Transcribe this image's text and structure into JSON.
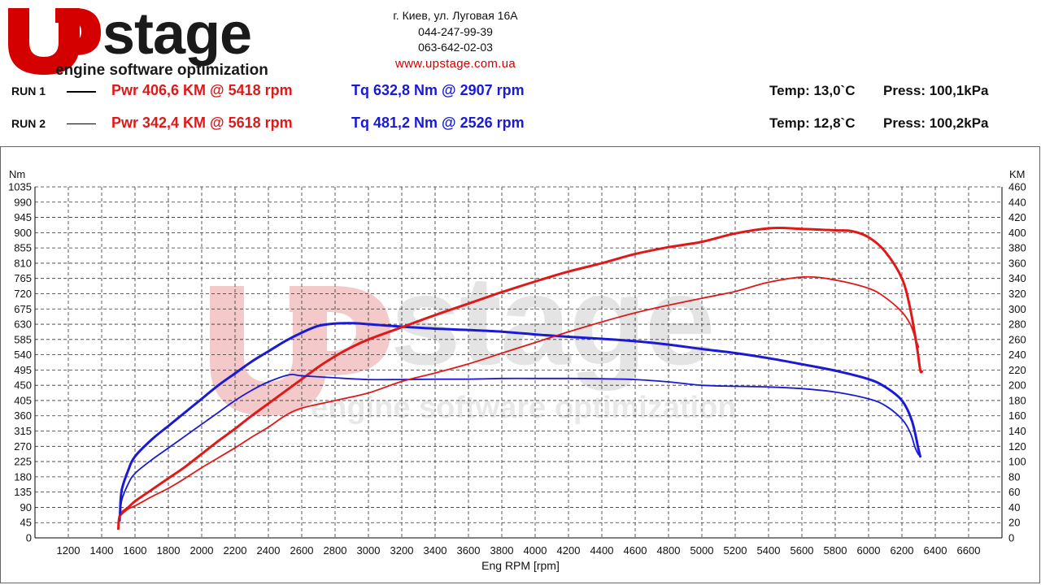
{
  "header": {
    "brand": "stage",
    "tagline": "engine software optimization",
    "address": "г. Киев, ул. Луговая 16А",
    "phone1": "044-247-99-39",
    "phone2": "063-642-02-03",
    "website": "www.upstage.com.ua"
  },
  "runs": [
    {
      "label": "RUN 1",
      "power": "Pwr  406,6 KM @ 5418 rpm",
      "torque": "Tq 632,8 Nm @ 2907 rpm",
      "temp": "Temp: 13,0`C",
      "press": "Press: 100,1kPa"
    },
    {
      "label": "RUN 2",
      "power": "Pwr  342,4 KM @ 5618 rpm",
      "torque": "Tq 481,2 Nm @ 2526 rpm",
      "temp": "Temp: 12,8`C",
      "press": "Press: 100,2kPa"
    }
  ],
  "colors": {
    "power": "#e01818",
    "torque": "#1a1ad6",
    "watermark_red": "#f3c4c4",
    "watermark_gray": "#e4e4e4"
  },
  "chart_data": {
    "type": "line",
    "xlabel": "Eng RPM [rpm]",
    "ylabel_left": "Nm",
    "ylabel_right": "KM",
    "xlim": [
      1000,
      6800
    ],
    "ylim_left": [
      0,
      1035
    ],
    "ylim_right": [
      0,
      460
    ],
    "x_ticks": [
      1200,
      1400,
      1600,
      1800,
      2000,
      2200,
      2400,
      2600,
      2800,
      3000,
      3200,
      3400,
      3600,
      3800,
      4000,
      4200,
      4400,
      4600,
      4800,
      5000,
      5200,
      5400,
      5600,
      5800,
      6000,
      6200,
      6400,
      6600
    ],
    "y_left_ticks": [
      0,
      45,
      90,
      135,
      180,
      225,
      270,
      315,
      360,
      405,
      450,
      495,
      540,
      585,
      630,
      675,
      720,
      765,
      810,
      855,
      900,
      945,
      990,
      1035
    ],
    "y_right_ticks": [
      0,
      20,
      40,
      60,
      80,
      100,
      120,
      140,
      160,
      180,
      200,
      220,
      240,
      260,
      280,
      300,
      320,
      340,
      360,
      380,
      400,
      420,
      440,
      460
    ],
    "grid": true,
    "series": [
      {
        "name": "RUN 1",
        "quantity": "torque",
        "axis": "left",
        "unit": "Nm",
        "stroke": 3,
        "x": [
          1510,
          1520,
          1560,
          1600,
          1700,
          1800,
          1900,
          2000,
          2100,
          2200,
          2300,
          2400,
          2500,
          2600,
          2700,
          2800,
          2907,
          3000,
          3200,
          3400,
          3600,
          3800,
          4000,
          4200,
          4400,
          4600,
          4800,
          5000,
          5200,
          5400,
          5600,
          5800,
          6000,
          6100,
          6200,
          6260,
          6300,
          6310
        ],
        "y": [
          70,
          140,
          200,
          240,
          290,
          330,
          370,
          410,
          450,
          485,
          520,
          550,
          580,
          605,
          625,
          632,
          633,
          630,
          623,
          617,
          613,
          608,
          600,
          593,
          587,
          580,
          570,
          557,
          545,
          530,
          512,
          493,
          468,
          445,
          405,
          345,
          260,
          240
        ]
      },
      {
        "name": "RUN 1",
        "quantity": "power",
        "axis": "right",
        "unit": "KM",
        "stroke": 3,
        "x": [
          1500,
          1510,
          1560,
          1600,
          1700,
          1800,
          1900,
          2000,
          2100,
          2200,
          2300,
          2400,
          2500,
          2600,
          2700,
          2800,
          2900,
          3000,
          3200,
          3400,
          3600,
          3800,
          4000,
          4200,
          4400,
          4600,
          4800,
          5000,
          5200,
          5418,
          5600,
          5800,
          5900,
          6000,
          6100,
          6200,
          6250,
          6290,
          6310,
          6320
        ],
        "y": [
          12,
          30,
          40,
          48,
          63,
          78,
          93,
          110,
          127,
          143,
          160,
          176,
          192,
          208,
          224,
          238,
          250,
          260,
          276,
          292,
          307,
          322,
          336,
          349,
          360,
          372,
          381,
          388,
          399,
          406,
          405,
          403,
          402,
          394,
          375,
          340,
          300,
          250,
          220,
          218
        ]
      },
      {
        "name": "RUN 2",
        "quantity": "torque",
        "axis": "left",
        "unit": "Nm",
        "stroke": 1.8,
        "x": [
          1510,
          1520,
          1560,
          1600,
          1700,
          1800,
          1900,
          2000,
          2100,
          2200,
          2300,
          2400,
          2526,
          2600,
          2800,
          3000,
          3200,
          3400,
          3600,
          3800,
          4000,
          4200,
          4400,
          4600,
          4800,
          5000,
          5200,
          5400,
          5600,
          5800,
          6000,
          6100,
          6200,
          6250,
          6280,
          6300
        ],
        "y": [
          50,
          110,
          160,
          190,
          230,
          265,
          300,
          335,
          370,
          405,
          435,
          460,
          481,
          478,
          472,
          467,
          467,
          468,
          468,
          470,
          470,
          470,
          469,
          467,
          460,
          450,
          447,
          445,
          440,
          430,
          410,
          390,
          350,
          310,
          265,
          245
        ]
      },
      {
        "name": "RUN 2",
        "quantity": "power",
        "axis": "right",
        "unit": "KM",
        "stroke": 1.8,
        "x": [
          1500,
          1510,
          1560,
          1600,
          1700,
          1800,
          1900,
          2000,
          2100,
          2200,
          2300,
          2400,
          2500,
          2600,
          2800,
          3000,
          3200,
          3400,
          3600,
          3800,
          4000,
          4200,
          4400,
          4600,
          4800,
          5000,
          5200,
          5400,
          5618,
          5800,
          6000,
          6100,
          6200,
          6250,
          6280,
          6300
        ],
        "y": [
          15,
          28,
          38,
          42,
          54,
          65,
          78,
          92,
          105,
          118,
          132,
          145,
          160,
          170,
          180,
          190,
          205,
          216,
          228,
          242,
          256,
          270,
          283,
          295,
          305,
          314,
          323,
          335,
          342,
          338,
          327,
          315,
          296,
          280,
          262,
          250
        ]
      }
    ]
  }
}
